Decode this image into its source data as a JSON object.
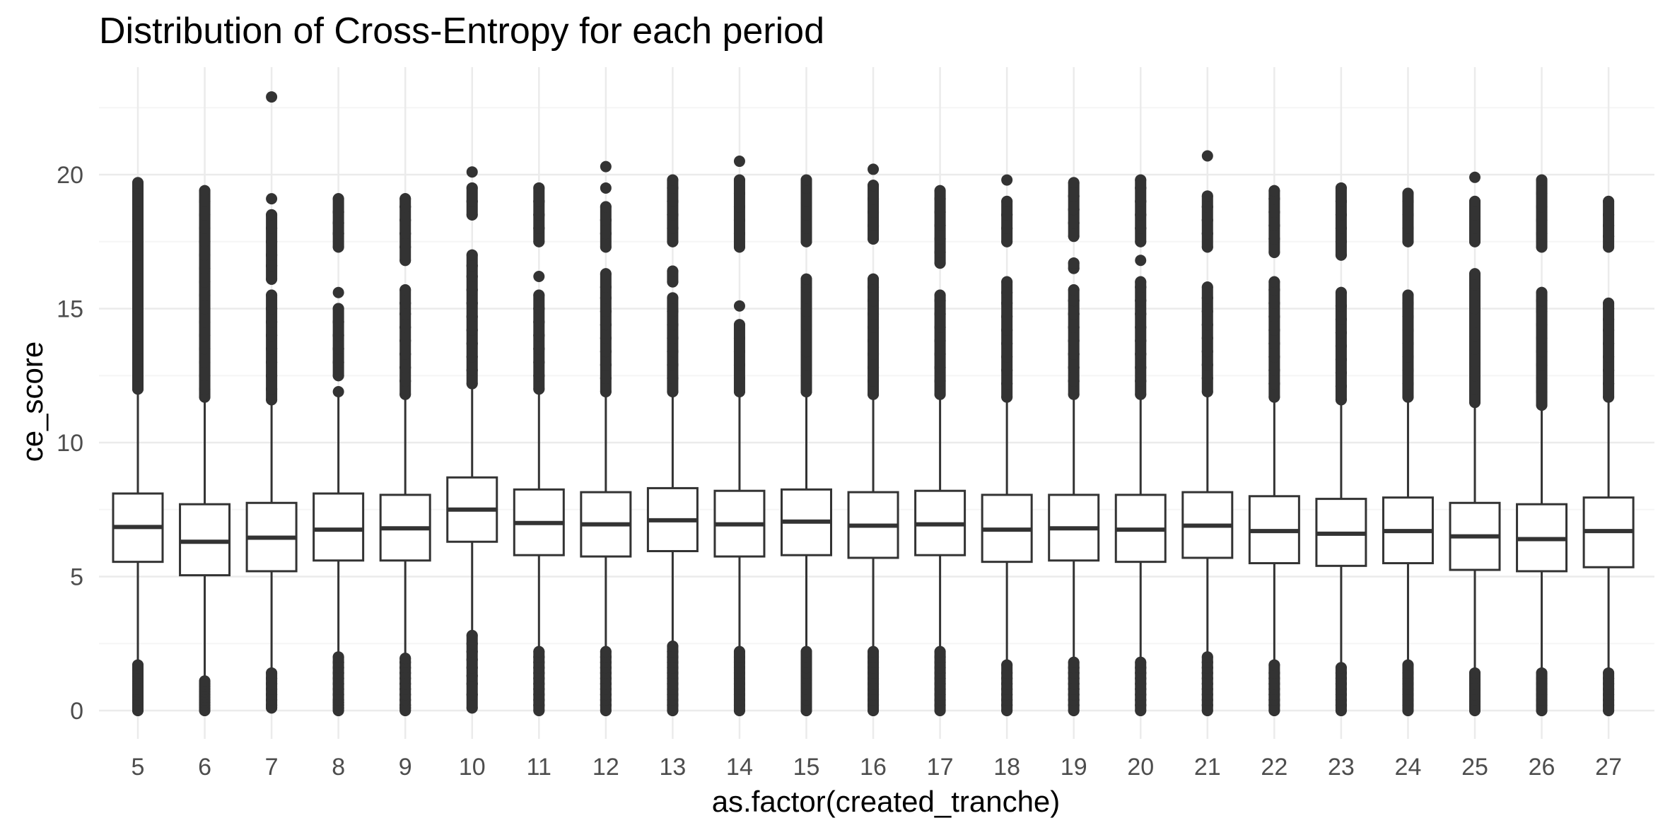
{
  "chart_data": {
    "type": "boxplot",
    "title": "Distribution of Cross-Entropy for each period",
    "xlabel": "as.factor(created_tranche)",
    "ylabel": "ce_score",
    "ylim": [
      -1.5,
      23.5
    ],
    "yticks": [
      0,
      5,
      10,
      15,
      20
    ],
    "grid": true,
    "legend": "none",
    "colors": {
      "box_stroke": "#333333",
      "box_fill": "#ffffff",
      "grid_major": "#ebebeb",
      "grid_minor": "#f5f5f5",
      "outlier": "#333333"
    },
    "categories": [
      "5",
      "6",
      "7",
      "8",
      "9",
      "10",
      "11",
      "12",
      "13",
      "14",
      "15",
      "16",
      "17",
      "18",
      "19",
      "20",
      "21",
      "22",
      "23",
      "24",
      "25",
      "26",
      "27"
    ],
    "boxes": [
      {
        "q1": 5.55,
        "median": 6.85,
        "q3": 8.1,
        "whisker_low": 0.25,
        "whisker_high": 11.9,
        "outliers_low": [
          0.0,
          0.1,
          0.2,
          0.3,
          0.4,
          0.5,
          0.6,
          0.7,
          0.8,
          1.0,
          1.2,
          1.4,
          1.6,
          1.7
        ],
        "outliers_high": [
          12.0,
          12.5,
          13.0,
          13.5,
          14.0,
          14.5,
          15.0,
          15.5,
          16.0,
          16.5,
          17.0,
          17.5,
          18.0,
          18.5,
          19.0,
          19.5,
          19.7
        ]
      },
      {
        "q1": 5.05,
        "median": 6.3,
        "q3": 7.7,
        "whisker_low": 0.3,
        "whisker_high": 11.6,
        "outliers_low": [
          0.0,
          0.1,
          0.2,
          0.3,
          0.4,
          0.5,
          0.6,
          0.7,
          0.8,
          0.9,
          1.0,
          1.1
        ],
        "outliers_high": [
          11.7,
          12.0,
          12.5,
          13.0,
          13.5,
          14.0,
          14.5,
          15.0,
          15.5,
          16.0,
          16.5,
          17.0,
          17.5,
          18.0,
          18.5,
          19.0,
          19.4
        ]
      },
      {
        "q1": 5.2,
        "median": 6.45,
        "q3": 7.75,
        "whisker_low": 0.15,
        "whisker_high": 11.5,
        "outliers_low": [
          0.1,
          0.2,
          0.4,
          0.6,
          0.8,
          1.0,
          1.2,
          1.4
        ],
        "outliers_high": [
          11.6,
          12.0,
          12.5,
          13.0,
          13.5,
          14.0,
          14.5,
          15.0,
          15.5,
          16.1,
          16.6,
          17.0,
          17.5,
          18.0,
          18.5,
          19.1,
          22.9
        ]
      },
      {
        "q1": 5.6,
        "median": 6.75,
        "q3": 8.1,
        "whisker_low": 0.3,
        "whisker_high": 11.8,
        "outliers_low": [
          0.0,
          0.1,
          0.2,
          0.3,
          0.4,
          0.6,
          0.8,
          1.0,
          1.2,
          1.4,
          1.6,
          1.8,
          2.0
        ],
        "outliers_high": [
          11.9,
          12.5,
          13.0,
          13.5,
          14.0,
          14.5,
          15.0,
          15.6,
          17.3,
          17.8,
          18.2,
          18.6,
          19.1
        ]
      },
      {
        "q1": 5.6,
        "median": 6.8,
        "q3": 8.05,
        "whisker_low": 0.3,
        "whisker_high": 11.7,
        "outliers_low": [
          0.0,
          0.1,
          0.2,
          0.4,
          0.6,
          0.8,
          1.0,
          1.2,
          1.4,
          1.6,
          1.8,
          1.95
        ],
        "outliers_high": [
          11.8,
          12.3,
          12.8,
          13.3,
          13.8,
          14.3,
          14.8,
          15.2,
          15.7,
          16.8,
          17.3,
          17.8,
          18.3,
          18.8,
          19.1
        ]
      },
      {
        "q1": 6.3,
        "median": 7.5,
        "q3": 8.7,
        "whisker_low": 1.2,
        "whisker_high": 12.1,
        "outliers_low": [
          0.1,
          0.6,
          1.0,
          1.3,
          1.6,
          1.9,
          2.2,
          2.5,
          2.8
        ],
        "outliers_high": [
          12.2,
          12.7,
          13.2,
          13.7,
          14.2,
          14.7,
          15.2,
          15.7,
          16.2,
          16.6,
          17.0,
          18.5,
          19.0,
          19.5,
          20.1
        ]
      },
      {
        "q1": 5.8,
        "median": 7.0,
        "q3": 8.25,
        "whisker_low": 0.2,
        "whisker_high": 11.9,
        "outliers_low": [
          0.0,
          0.2,
          0.4,
          0.6,
          0.8,
          1.0,
          1.2,
          1.4,
          1.6,
          1.8,
          2.0,
          2.2
        ],
        "outliers_high": [
          12.0,
          12.5,
          13.0,
          13.5,
          14.0,
          14.5,
          15.0,
          15.5,
          16.2,
          17.5,
          18.0,
          18.5,
          19.0,
          19.5
        ]
      },
      {
        "q1": 5.75,
        "median": 6.95,
        "q3": 8.15,
        "whisker_low": 0.2,
        "whisker_high": 11.8,
        "outliers_low": [
          0.0,
          0.2,
          0.4,
          0.6,
          0.8,
          1.0,
          1.2,
          1.4,
          1.6,
          1.8,
          2.0,
          2.2
        ],
        "outliers_high": [
          11.9,
          12.4,
          12.9,
          13.4,
          13.9,
          14.4,
          14.9,
          15.4,
          15.8,
          16.3,
          17.3,
          17.8,
          18.3,
          18.8,
          19.5,
          20.3
        ]
      },
      {
        "q1": 5.95,
        "median": 7.1,
        "q3": 8.3,
        "whisker_low": 0.3,
        "whisker_high": 11.8,
        "outliers_low": [
          0.0,
          0.2,
          0.4,
          0.6,
          0.8,
          1.0,
          1.2,
          1.4,
          1.6,
          1.8,
          2.0,
          2.2,
          2.4
        ],
        "outliers_high": [
          11.9,
          12.4,
          12.9,
          13.4,
          13.9,
          14.4,
          14.9,
          15.4,
          16.0,
          16.4,
          17.5,
          18.0,
          18.5,
          19.0,
          19.5,
          19.8
        ]
      },
      {
        "q1": 5.75,
        "median": 6.95,
        "q3": 8.2,
        "whisker_low": 0.3,
        "whisker_high": 11.8,
        "outliers_low": [
          0.0,
          0.2,
          0.4,
          0.6,
          0.8,
          1.0,
          1.2,
          1.4,
          1.6,
          1.8,
          2.0,
          2.2
        ],
        "outliers_high": [
          11.9,
          12.4,
          12.9,
          13.4,
          13.9,
          14.4,
          15.1,
          17.3,
          17.8,
          18.3,
          18.8,
          19.3,
          19.8,
          20.5
        ]
      },
      {
        "q1": 5.8,
        "median": 7.05,
        "q3": 8.25,
        "whisker_low": 0.3,
        "whisker_high": 11.8,
        "outliers_low": [
          0.0,
          0.2,
          0.4,
          0.6,
          0.8,
          1.0,
          1.2,
          1.4,
          1.6,
          1.8,
          2.0,
          2.2
        ],
        "outliers_high": [
          11.9,
          12.4,
          12.9,
          13.4,
          13.9,
          14.4,
          14.9,
          15.4,
          15.8,
          16.1,
          17.5,
          18.0,
          18.5,
          19.0,
          19.5,
          19.8
        ]
      },
      {
        "q1": 5.7,
        "median": 6.9,
        "q3": 8.15,
        "whisker_low": 0.3,
        "whisker_high": 11.7,
        "outliers_low": [
          0.0,
          0.2,
          0.4,
          0.6,
          0.8,
          1.0,
          1.2,
          1.4,
          1.6,
          1.8,
          2.0,
          2.2
        ],
        "outliers_high": [
          11.8,
          12.3,
          12.8,
          13.3,
          13.8,
          14.3,
          14.8,
          15.3,
          15.8,
          16.1,
          17.6,
          18.1,
          18.6,
          19.1,
          19.6,
          20.2
        ]
      },
      {
        "q1": 5.8,
        "median": 6.95,
        "q3": 8.2,
        "whisker_low": 0.3,
        "whisker_high": 11.7,
        "outliers_low": [
          0.0,
          0.2,
          0.4,
          0.6,
          0.8,
          1.0,
          1.2,
          1.4,
          1.6,
          1.8,
          2.0,
          2.2
        ],
        "outliers_high": [
          11.8,
          12.3,
          12.8,
          13.3,
          13.8,
          14.3,
          14.8,
          15.3,
          15.5,
          16.7,
          17.1,
          17.6,
          18.1,
          18.6,
          19.1,
          19.4
        ]
      },
      {
        "q1": 5.55,
        "median": 6.75,
        "q3": 8.05,
        "whisker_low": 0.3,
        "whisker_high": 11.6,
        "outliers_low": [
          0.0,
          0.2,
          0.4,
          0.6,
          0.8,
          1.0,
          1.2,
          1.4,
          1.7
        ],
        "outliers_high": [
          11.7,
          12.2,
          12.7,
          13.2,
          13.7,
          14.2,
          14.7,
          15.2,
          15.6,
          16.0,
          17.5,
          18.0,
          18.5,
          19.0,
          19.8
        ]
      },
      {
        "q1": 5.6,
        "median": 6.8,
        "q3": 8.05,
        "whisker_low": 0.3,
        "whisker_high": 11.7,
        "outliers_low": [
          0.0,
          0.2,
          0.4,
          0.6,
          0.8,
          1.0,
          1.2,
          1.4,
          1.6,
          1.8
        ],
        "outliers_high": [
          11.8,
          12.3,
          12.8,
          13.3,
          13.8,
          14.3,
          14.8,
          15.3,
          15.7,
          16.5,
          16.7,
          17.7,
          18.2,
          18.7,
          19.2,
          19.7
        ]
      },
      {
        "q1": 5.55,
        "median": 6.75,
        "q3": 8.05,
        "whisker_low": 0.3,
        "whisker_high": 11.7,
        "outliers_low": [
          0.0,
          0.2,
          0.4,
          0.6,
          0.8,
          1.0,
          1.2,
          1.4,
          1.6,
          1.8
        ],
        "outliers_high": [
          11.8,
          12.3,
          12.8,
          13.3,
          13.8,
          14.3,
          14.8,
          15.3,
          15.8,
          16.0,
          16.8,
          17.5,
          18.0,
          18.5,
          19.0,
          19.5,
          19.8
        ]
      },
      {
        "q1": 5.7,
        "median": 6.9,
        "q3": 8.15,
        "whisker_low": 0.3,
        "whisker_high": 11.8,
        "outliers_low": [
          0.0,
          0.2,
          0.4,
          0.6,
          0.8,
          1.0,
          1.2,
          1.4,
          1.6,
          1.8,
          2.0
        ],
        "outliers_high": [
          11.9,
          12.4,
          12.9,
          13.4,
          13.9,
          14.4,
          14.9,
          15.4,
          15.8,
          17.3,
          17.8,
          18.3,
          18.8,
          19.2,
          20.7
        ]
      },
      {
        "q1": 5.5,
        "median": 6.7,
        "q3": 8.0,
        "whisker_low": 0.3,
        "whisker_high": 11.6,
        "outliers_low": [
          0.0,
          0.2,
          0.4,
          0.6,
          0.8,
          1.0,
          1.2,
          1.4,
          1.7
        ],
        "outliers_high": [
          11.7,
          12.2,
          12.7,
          13.2,
          13.7,
          14.2,
          14.7,
          15.2,
          15.7,
          16.0,
          17.1,
          17.6,
          18.1,
          18.6,
          19.1,
          19.4
        ]
      },
      {
        "q1": 5.4,
        "median": 6.6,
        "q3": 7.9,
        "whisker_low": 0.3,
        "whisker_high": 11.5,
        "outliers_low": [
          0.0,
          0.2,
          0.4,
          0.6,
          0.8,
          1.0,
          1.2,
          1.4,
          1.6
        ],
        "outliers_high": [
          11.6,
          12.1,
          12.6,
          13.1,
          13.6,
          14.1,
          14.6,
          15.1,
          15.6,
          17.0,
          17.5,
          18.0,
          18.5,
          19.0,
          19.5
        ]
      },
      {
        "q1": 5.5,
        "median": 6.7,
        "q3": 7.95,
        "whisker_low": 0.3,
        "whisker_high": 11.6,
        "outliers_low": [
          0.0,
          0.2,
          0.4,
          0.6,
          0.8,
          1.0,
          1.2,
          1.4,
          1.7
        ],
        "outliers_high": [
          11.7,
          12.2,
          12.7,
          13.2,
          13.7,
          14.2,
          14.7,
          15.2,
          15.5,
          17.5,
          18.0,
          18.5,
          19.0,
          19.3
        ]
      },
      {
        "q1": 5.25,
        "median": 6.5,
        "q3": 7.75,
        "whisker_low": 0.3,
        "whisker_high": 11.4,
        "outliers_low": [
          0.0,
          0.2,
          0.4,
          0.6,
          0.8,
          1.0,
          1.2,
          1.4
        ],
        "outliers_high": [
          11.5,
          12.0,
          12.5,
          13.0,
          13.5,
          14.0,
          14.5,
          15.0,
          15.5,
          15.9,
          16.3,
          17.5,
          18.0,
          18.5,
          19.0,
          19.9
        ]
      },
      {
        "q1": 5.2,
        "median": 6.4,
        "q3": 7.7,
        "whisker_low": 0.3,
        "whisker_high": 11.3,
        "outliers_low": [
          0.0,
          0.2,
          0.4,
          0.6,
          0.8,
          1.0,
          1.2,
          1.4
        ],
        "outliers_high": [
          11.4,
          11.9,
          12.4,
          12.9,
          13.4,
          13.9,
          14.4,
          14.9,
          15.3,
          15.6,
          17.3,
          17.8,
          18.3,
          18.8,
          19.3,
          19.8
        ]
      },
      {
        "q1": 5.35,
        "median": 6.7,
        "q3": 7.95,
        "whisker_low": 0.3,
        "whisker_high": 11.6,
        "outliers_low": [
          0.0,
          0.2,
          0.4,
          0.6,
          0.8,
          1.0,
          1.2,
          1.4
        ],
        "outliers_high": [
          11.7,
          12.2,
          12.7,
          13.2,
          13.7,
          14.2,
          14.6,
          15.0,
          15.2,
          17.3,
          17.7,
          18.1,
          18.5,
          19.0
        ]
      }
    ]
  }
}
